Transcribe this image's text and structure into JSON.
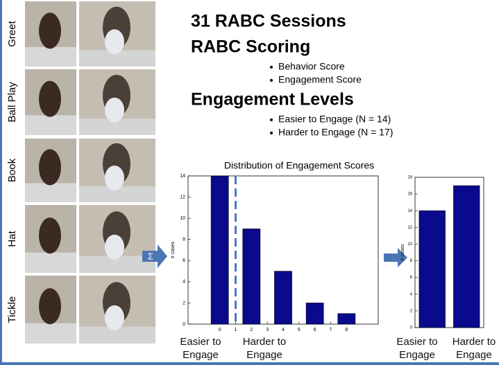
{
  "photo_labels": [
    "Greet",
    "Ball Play",
    "Book",
    "Hat",
    "Tickle"
  ],
  "headings": {
    "sessions": "31 RABC Sessions",
    "scoring": "RABC Scoring",
    "levels": "Engagement Levels"
  },
  "scoring_bullets": [
    "Behavior Score",
    "Engagement Score"
  ],
  "level_bullets": [
    "Easier to Engage (N = 14)",
    "Harder to Engage (N = 17)"
  ],
  "sum_symbol": "Σ",
  "chart_data": [
    {
      "type": "bar",
      "title": "Distribution of Engagement Scores",
      "y_label": "# cases",
      "x": [
        0,
        2,
        4,
        6,
        8
      ],
      "values": [
        14,
        9,
        5,
        2,
        1
      ],
      "color": "#0a0a8c",
      "xlim": [
        -2,
        10
      ],
      "xticks": [
        0,
        1,
        2,
        3,
        4,
        5,
        6,
        7,
        8
      ],
      "ylim": [
        0,
        14
      ],
      "yticks": [
        0,
        2,
        4,
        6,
        8,
        10,
        12,
        14
      ],
      "threshold": 1,
      "annotations": [
        "Easier to Engage",
        "Harder to Engage"
      ]
    },
    {
      "type": "bar",
      "y_label": "# cases",
      "categories": [
        "Easier to Engage",
        "Harder to Engage"
      ],
      "values": [
        14,
        17
      ],
      "color": "#0a0a8c",
      "ylim": [
        0,
        18
      ],
      "yticks": [
        0,
        2,
        4,
        6,
        8,
        10,
        12,
        14,
        16,
        18
      ]
    }
  ]
}
